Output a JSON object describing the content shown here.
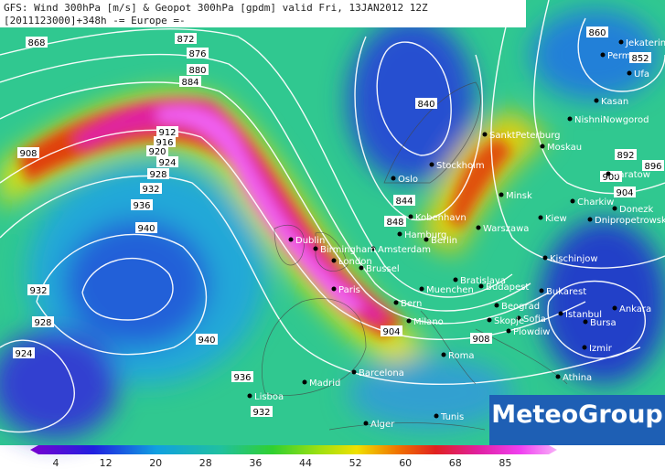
{
  "header": {
    "line1": "GFS: Wind 300hPa [m/s] & Geopot 300hPa [gpdm] valid Fri, 13JAN2012 12Z",
    "line2": "[2011123000]+348h  -= Europe =-"
  },
  "contour_labels": [
    "868",
    "872",
    "876",
    "880",
    "884",
    "908",
    "912",
    "916",
    "920",
    "924",
    "928",
    "932",
    "936",
    "940",
    "932",
    "928",
    "924",
    "940",
    "936",
    "932",
    "840",
    "844",
    "848",
    "860",
    "852",
    "892",
    "896",
    "900",
    "904",
    "908",
    "904"
  ],
  "cities": [
    "Oslo",
    "Stockholm",
    "SanktPeterburg",
    "Moskau",
    "Kasan",
    "NishniNowgorod",
    "Minsk",
    "Kiew",
    "Warszawa",
    "Kobenhavn",
    "Hamburg",
    "Berlin",
    "Amsterdam",
    "Dublin",
    "Birmingham",
    "London",
    "Brussel",
    "Paris",
    "Bratislava",
    "Budapest",
    "Muenchen",
    "Bern",
    "Milano",
    "Beograd",
    "Bukarest",
    "Sofia",
    "Istanbul",
    "Ankara",
    "Bursa",
    "Izmir",
    "Athina",
    "Roma",
    "Barcelona",
    "Madrid",
    "Lisboa",
    "Tunis",
    "Alger",
    "Charkiw",
    "Donezk",
    "Dnipropetrowsk",
    "Kischinjow",
    "Perm",
    "Jekaterinburg",
    "Ufa",
    "Saratow",
    "Plowdiw",
    "Skopje"
  ],
  "colorbar": {
    "ticks": [
      "4",
      "12",
      "20",
      "28",
      "36",
      "44",
      "52",
      "60",
      "68",
      "85"
    ]
  },
  "logo": "MeteoGroup"
}
